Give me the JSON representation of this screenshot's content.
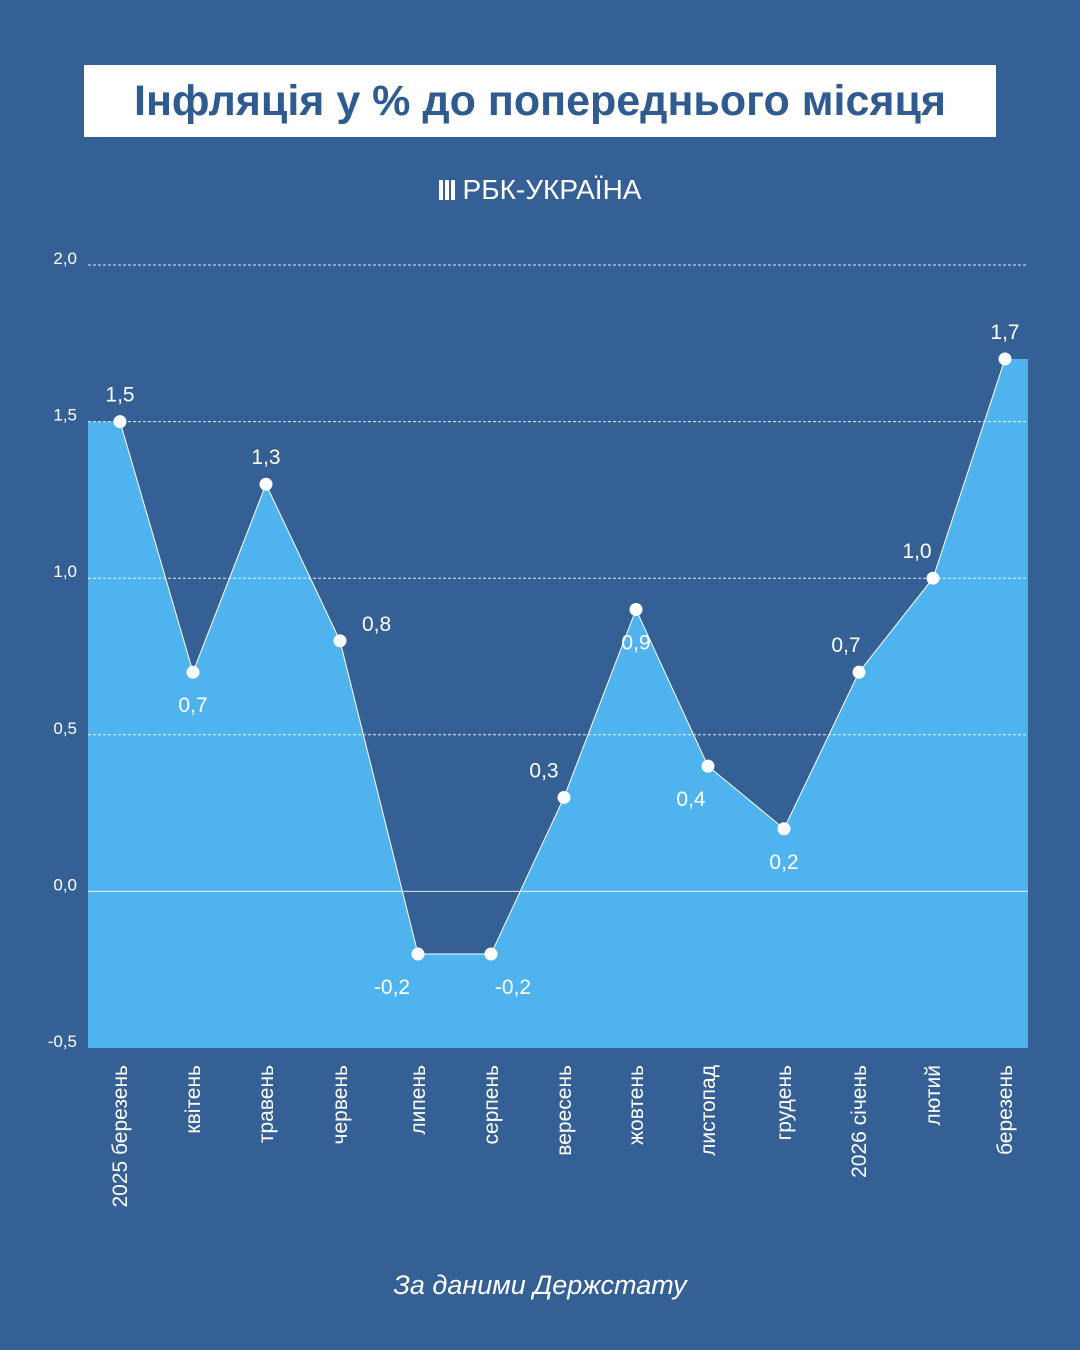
{
  "title": "Інфляція у % до попереднього місяця",
  "logo_text": "РБК-УКРАЇНА",
  "source": "За даними Держстату",
  "colors": {
    "background": "#356095",
    "area": "#4fb3f0",
    "title_text": "#2f5b90",
    "line": "#ffffff"
  },
  "chart_data": {
    "type": "area",
    "title": "Інфляція у % до попереднього місяця",
    "xlabel": "",
    "ylabel": "",
    "ylim": [
      -0.5,
      2.0
    ],
    "grid": true,
    "yticks": [
      "2,0",
      "1,5",
      "1,0",
      "0,5",
      "0,0",
      "-0,5"
    ],
    "ytick_values": [
      2.0,
      1.5,
      1.0,
      0.5,
      0.0,
      -0.5
    ],
    "categories": [
      "2025 березень",
      "квітень",
      "травень",
      "червень",
      "липень",
      "серпень",
      "вересень",
      "жовтень",
      "листопад",
      "грудень",
      "2026 січень",
      "лютий",
      "березень"
    ],
    "values": [
      1.5,
      0.7,
      1.3,
      0.8,
      -0.2,
      -0.2,
      0.3,
      0.9,
      0.4,
      0.2,
      0.7,
      1.0,
      1.7
    ],
    "data_labels": [
      "1,5",
      "0,7",
      "1,3",
      "0,8",
      "-0,2",
      "-0,2",
      "0,3",
      "0,9",
      "0,4",
      "0,2",
      "0,7",
      "1,0",
      "1,7"
    ]
  }
}
